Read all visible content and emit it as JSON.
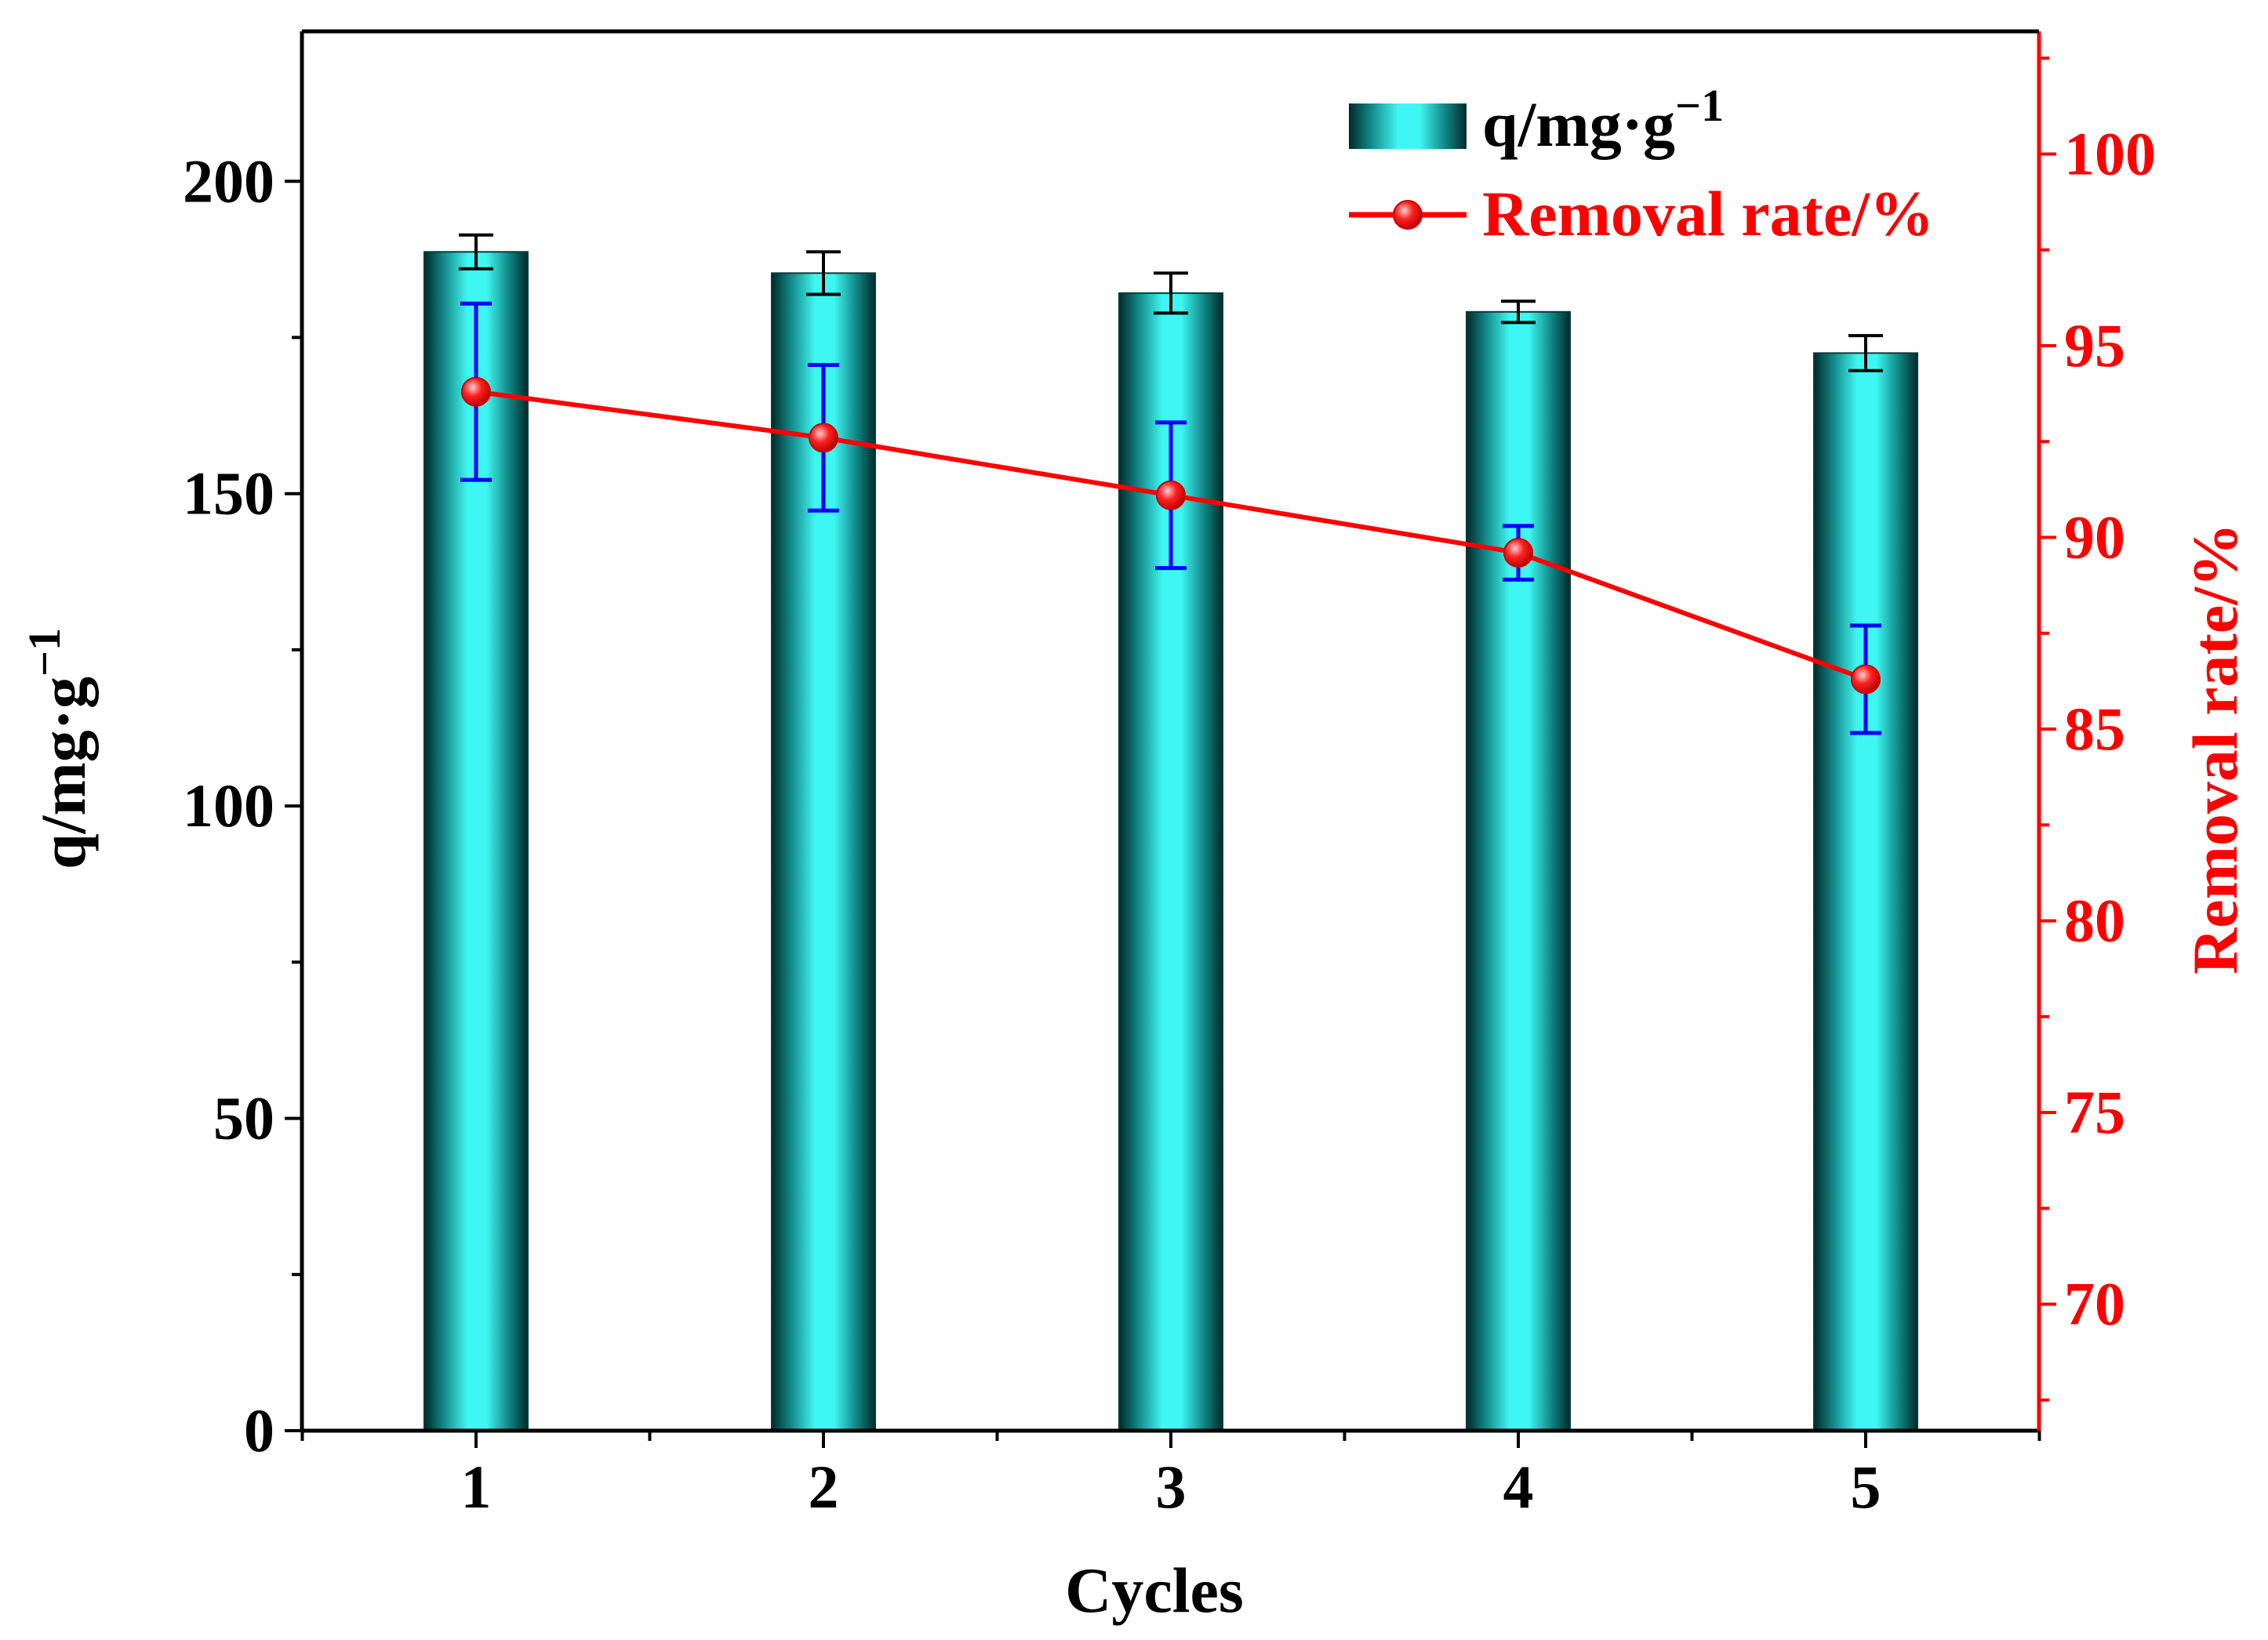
{
  "chart_data": {
    "type": "bar+line",
    "xlabel": "Cycles",
    "categories": [
      "1",
      "2",
      "3",
      "4",
      "5"
    ],
    "left_axis": {
      "label_main": "q/mg·g",
      "label_sup": "−1",
      "range": [
        0,
        224
      ],
      "ticks": [
        0,
        50,
        100,
        150,
        200
      ],
      "minor_step": 25,
      "color": "#000000"
    },
    "right_axis": {
      "label": "Removal rate/%",
      "range": [
        66.7,
        103.2
      ],
      "ticks": [
        70,
        75,
        80,
        85,
        90,
        95,
        100
      ],
      "minor_step": 2.5,
      "color": "#ff0000"
    },
    "series": [
      {
        "name": "q/mg·g",
        "name_sup": "−1",
        "kind": "bar",
        "axis": "left",
        "values": [
          188.7,
          185.3,
          182.1,
          179.1,
          172.5
        ],
        "errors": [
          2.7,
          3.4,
          3.2,
          1.7,
          2.8
        ]
      },
      {
        "name": "Removal rate/%",
        "kind": "line",
        "axis": "right",
        "values": [
          93.8,
          92.6,
          91.1,
          89.6,
          86.3
        ],
        "errors": [
          2.3,
          1.9,
          1.9,
          0.7,
          1.4
        ]
      }
    ],
    "legend_position": "top-right",
    "colors": {
      "bar_center": "#3ff5f0",
      "bar_edge": "#003030",
      "line": "#ff0000",
      "line_error": "#0000ff",
      "axis": "#000000"
    }
  }
}
